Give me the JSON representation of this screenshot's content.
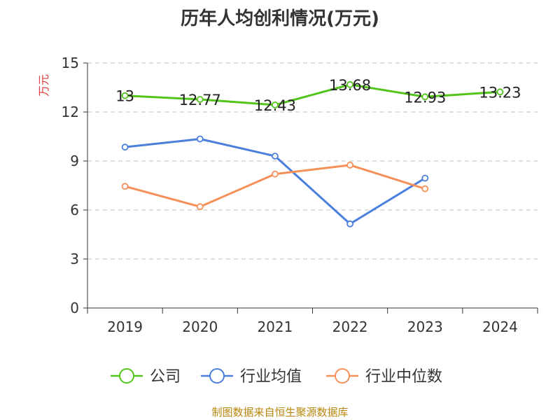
{
  "title": "历年人均创利情况(万元)",
  "source": "制图数据来自恒生聚源数据库",
  "colors": {
    "company": "#52c41a",
    "industry_avg": "#4a7fdc",
    "industry_median": "#f5905a",
    "unit_label": "#e23c3c",
    "grid": "#cccccc",
    "axis": "#333333"
  },
  "chart_data": {
    "type": "line",
    "ylabel": "万元",
    "ylim": [
      0,
      15
    ],
    "yticks": [
      0,
      3,
      6,
      9,
      12,
      15
    ],
    "grid": true,
    "legend_position": "bottom",
    "categories": [
      "2019",
      "2020",
      "2021",
      "2022",
      "2023",
      "2024"
    ],
    "series": [
      {
        "name": "公司",
        "color_key": "company",
        "values": [
          13,
          12.77,
          12.43,
          13.68,
          12.93,
          13.23
        ],
        "labels": [
          "13",
          "12.77",
          "12.43",
          "13.68",
          "12.93",
          "13.23"
        ]
      },
      {
        "name": "行业均值",
        "color_key": "industry_avg",
        "values": [
          9.85,
          10.35,
          9.3,
          5.15,
          7.95,
          null
        ]
      },
      {
        "name": "行业中位数",
        "color_key": "industry_median",
        "values": [
          7.45,
          6.2,
          8.2,
          8.75,
          7.3,
          null
        ]
      }
    ]
  }
}
